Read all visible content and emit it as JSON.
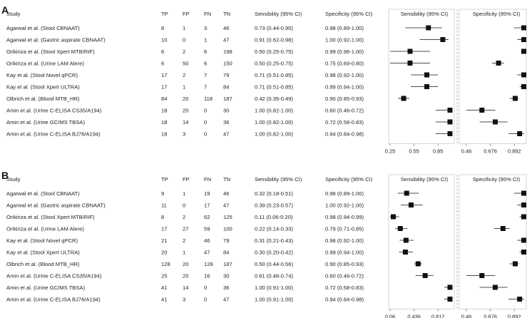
{
  "headers": {
    "study": "Study",
    "tp": "TP",
    "fp": "FP",
    "fn": "FN",
    "tn": "TN",
    "sens": "Sensibility (95% CI)",
    "spec": "Specificity (95% CI)",
    "sens_plot": "Sensibility (95% CI)",
    "spec_plot": "Specificity (95% CI)"
  },
  "chart_data": [
    {
      "type": "forest",
      "panel": "A",
      "sens_ticks": [
        "0.25",
        "0.55",
        "0.85"
      ],
      "sens_range": [
        0.25,
        1.0
      ],
      "spec_ticks": [
        "0.46",
        "0.676",
        "0.892"
      ],
      "spec_range": [
        0.46,
        1.0
      ],
      "rows": [
        {
          "study": "Agarwal et al. (Stool CBNAAT)",
          "tp": "8",
          "fp": "1",
          "fn": "3",
          "tn": "46",
          "sens_text": "0.73 (0.44-0.90)",
          "spec_text": "0.98 (0.89-1.00)",
          "sens": [
            0.73,
            0.44,
            0.9
          ],
          "spec": [
            0.98,
            0.89,
            1.0
          ]
        },
        {
          "study": "Agarwal et al. (Gastric aspirate CBNAAT)",
          "tp": "10",
          "fp": "0",
          "fn": "1",
          "tn": "47",
          "sens_text": "0.91 (0.62-0.98)",
          "spec_text": "1.00 (0.92-1.00)",
          "sens": [
            0.91,
            0.62,
            0.98
          ],
          "spec": [
            1.0,
            0.92,
            1.0
          ]
        },
        {
          "study": "Orikiriza et al. (Stool Xpert MTB/RIF)",
          "tp": "6",
          "fp": "2",
          "fn": "6",
          "tn": "198",
          "sens_text": "0.50 (0.25-0.75)",
          "spec_text": "0.99 (0.96-1.00)",
          "sens": [
            0.5,
            0.25,
            0.75
          ],
          "spec": [
            0.99,
            0.96,
            1.0
          ]
        },
        {
          "study": "Orikiriza et al. (Urine LAM Alere)",
          "tp": "6",
          "fp": "50",
          "fn": "6",
          "tn": "150",
          "sens_text": "0.50 (0.25-0.75)",
          "spec_text": "0.75 (0.69-0.80)",
          "sens": [
            0.5,
            0.25,
            0.75
          ],
          "spec": [
            0.75,
            0.69,
            0.8
          ]
        },
        {
          "study": "Kay et al. (Stool Novel qPCR)",
          "tp": "17",
          "fp": "2",
          "fn": "7",
          "tn": "79",
          "sens_text": "0.71 (0.51-0.85)",
          "spec_text": "0.98 (0.92-1.00)",
          "sens": [
            0.71,
            0.51,
            0.85
          ],
          "spec": [
            0.98,
            0.92,
            1.0
          ]
        },
        {
          "study": "Kay et al. (Stool Xpert ULTRA)",
          "tp": "17",
          "fp": "1",
          "fn": "7",
          "tn": "84",
          "sens_text": "0.71 (0.51-0.85)",
          "spec_text": "0.99 (0.94-1.00)",
          "sens": [
            0.71,
            0.51,
            0.85
          ],
          "spec": [
            0.99,
            0.94,
            1.0
          ]
        },
        {
          "study": "Olbrich et al. (Blood MTB_HR)",
          "tp": "84",
          "fp": "20",
          "fn": "118",
          "tn": "187",
          "sens_text": "0.42 (0.35-0.49)",
          "spec_text": "0.90 (0.85-0.93)",
          "sens": [
            0.42,
            0.35,
            0.49
          ],
          "spec": [
            0.9,
            0.85,
            0.93
          ]
        },
        {
          "study": "Amin et al. (Urine C-ELISA CS35/A194)",
          "tp": "18",
          "fp": "20",
          "fn": "0",
          "tn": "30",
          "sens_text": "1.00 (0.82-1.00)",
          "spec_text": "0.60 (0.46-0.72)",
          "sens": [
            1.0,
            0.82,
            1.0
          ],
          "spec": [
            0.6,
            0.46,
            0.72
          ]
        },
        {
          "study": "Amin et al. (Urine GC/MS TBSA)",
          "tp": "18",
          "fp": "14",
          "fn": "0",
          "tn": "36",
          "sens_text": "1.00 (0.82-1.00)",
          "spec_text": "0.72 (0.58-0.83)",
          "sens": [
            1.0,
            0.82,
            1.0
          ],
          "spec": [
            0.72,
            0.58,
            0.83
          ]
        },
        {
          "study": "Amin et al. (Urine C-ELISA BJ76/A194)",
          "tp": "18",
          "fp": "3",
          "fn": "0",
          "tn": "47",
          "sens_text": "1.00 (0.82-1.00)",
          "spec_text": "0.94 (0.84-0.98)",
          "sens": [
            1.0,
            0.82,
            1.0
          ],
          "spec": [
            0.94,
            0.84,
            0.98
          ]
        }
      ]
    },
    {
      "type": "forest",
      "panel": "B",
      "sens_ticks": [
        "0.06",
        "0.436",
        "0.812"
      ],
      "sens_range": [
        0.06,
        1.0
      ],
      "spec_ticks": [
        "0.46",
        "0.676",
        "0.892"
      ],
      "spec_range": [
        0.46,
        1.0
      ],
      "rows": [
        {
          "study": "Agarwal et al. (Stool CBNAAT)",
          "tp": "9",
          "fp": "1",
          "fn": "19",
          "tn": "46",
          "sens_text": "0.32 (0.18-0.51)",
          "spec_text": "0.98 (0.89-1.00)",
          "sens": [
            0.32,
            0.18,
            0.51
          ],
          "spec": [
            0.98,
            0.89,
            1.0
          ]
        },
        {
          "study": "Agarwal et al. (Gastric aspirate CBNAAT)",
          "tp": "11",
          "fp": "0",
          "fn": "17",
          "tn": "47",
          "sens_text": "0.39 (0.23-0.57)",
          "spec_text": "1.00 (0.92-1.00)",
          "sens": [
            0.39,
            0.23,
            0.57
          ],
          "spec": [
            1.0,
            0.92,
            1.0
          ]
        },
        {
          "study": "Orikiriza et al. (Stool Xpert MTB/RIF)",
          "tp": "8",
          "fp": "2",
          "fn": "62",
          "tn": "125",
          "sens_text": "0.11 (0.06-0.20)",
          "spec_text": "0.98 (0.94-0.99)",
          "sens": [
            0.11,
            0.06,
            0.2
          ],
          "spec": [
            0.98,
            0.94,
            0.99
          ]
        },
        {
          "study": "Orikiriza et al. (Urine LAM Alere)",
          "tp": "17",
          "fp": "27",
          "fn": "59",
          "tn": "100",
          "sens_text": "0.22 (0.14-0.33)",
          "spec_text": "0.79 (0.71-0.85)",
          "sens": [
            0.22,
            0.14,
            0.33
          ],
          "spec": [
            0.79,
            0.71,
            0.85
          ]
        },
        {
          "study": "Kay et al. (Stool Novel qPCR)",
          "tp": "21",
          "fp": "2",
          "fn": "46",
          "tn": "79",
          "sens_text": "0.31 (0.21-0.43)",
          "spec_text": "0.98 (0.92-1.00)",
          "sens": [
            0.31,
            0.21,
            0.43
          ],
          "spec": [
            0.98,
            0.92,
            1.0
          ]
        },
        {
          "study": "Kay et al. (Stool Xpert ULTRA)",
          "tp": "20",
          "fp": "1",
          "fn": "47",
          "tn": "84",
          "sens_text": "0.30 (0.20-0.42)",
          "spec_text": "0.99 (0.94-1.00)",
          "sens": [
            0.3,
            0.2,
            0.42
          ],
          "spec": [
            0.99,
            0.94,
            1.0
          ]
        },
        {
          "study": "Olbrich et al. (Blood MTB_HR)",
          "tp": "128",
          "fp": "20",
          "fn": "128",
          "tn": "187",
          "sens_text": "0.50 (0.44-0.56)",
          "spec_text": "0.90 (0.85-0.93)",
          "sens": [
            0.5,
            0.44,
            0.56
          ],
          "spec": [
            0.9,
            0.85,
            0.93
          ]
        },
        {
          "study": "Amin et al. (Urine C-ELISA CS35/A194)",
          "tp": "25",
          "fp": "20",
          "fn": "16",
          "tn": "30",
          "sens_text": "0.61 (0.46-0.74)",
          "spec_text": "0.60 (0.46-0.72)",
          "sens": [
            0.61,
            0.46,
            0.74
          ],
          "spec": [
            0.6,
            0.46,
            0.72
          ]
        },
        {
          "study": "Amin et al. (Urine GC/MS TBSA)",
          "tp": "41",
          "fp": "14",
          "fn": "0",
          "tn": "36",
          "sens_text": "1.00 (0.91-1.00)",
          "spec_text": "0.72 (0.58-0.83)",
          "sens": [
            1.0,
            0.91,
            1.0
          ],
          "spec": [
            0.72,
            0.58,
            0.83
          ]
        },
        {
          "study": "Amin et al. (Urine C-ELISA BJ76/A194)",
          "tp": "41",
          "fp": "3",
          "fn": "0",
          "tn": "47",
          "sens_text": "1.00 (0.91-1.00)",
          "spec_text": "0.94 (0.84-0.98)",
          "sens": [
            1.0,
            0.91,
            1.0
          ],
          "spec": [
            0.94,
            0.84,
            0.98
          ]
        }
      ]
    }
  ]
}
